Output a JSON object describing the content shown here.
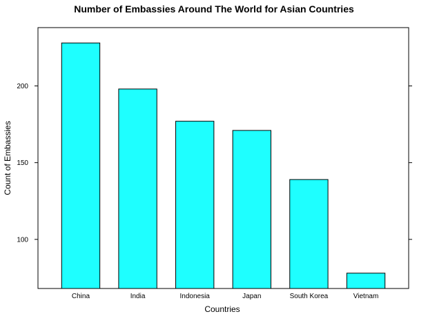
{
  "chart_data": {
    "type": "bar",
    "title": "Number of Embassies Around The World for Asian Countries",
    "xlabel": "Countries",
    "ylabel": "Count of Embassies",
    "categories": [
      "China",
      "India",
      "Indonesia",
      "Japan",
      "South Korea",
      "Vietnam"
    ],
    "values": [
      228,
      198,
      177,
      171,
      139,
      78
    ],
    "ylim": [
      68,
      238
    ],
    "yticks": [
      100,
      150,
      200
    ],
    "grid": false,
    "legend": "none",
    "colors": {
      "bar_fill": "#1EFFFF",
      "bar_stroke": "#000000",
      "axis": "#000000"
    }
  }
}
